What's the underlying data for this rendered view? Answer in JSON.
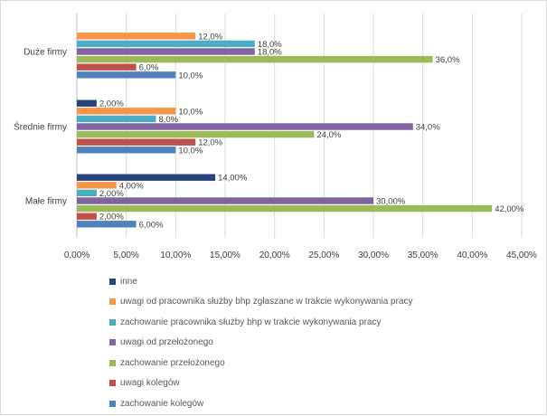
{
  "chart_data": {
    "type": "bar",
    "orientation": "horizontal",
    "categories": [
      "Duże firmy",
      "Średnie firmy",
      "Małe firmy"
    ],
    "series": [
      {
        "name": "inne",
        "color": "#264478",
        "values": [
          null,
          2.0,
          14.0
        ],
        "labels": [
          "",
          "2,00%",
          "14,00%"
        ]
      },
      {
        "name": "uwagi od pracownika służby bhp zgłaszane w trakcie wykonywania pracy",
        "color": "#f79646",
        "values": [
          12.0,
          10.0,
          4.0
        ],
        "labels": [
          "12,0%",
          "10,0%",
          "4,00%"
        ]
      },
      {
        "name": "zachowanie pracownika służby bhp w trakcie wykonywania pracy",
        "color": "#4bacc6",
        "values": [
          18.0,
          8.0,
          2.0
        ],
        "labels": [
          "18,0%",
          "8,0%",
          "2,00%"
        ]
      },
      {
        "name": "uwagi od przełożonego",
        "color": "#8064a2",
        "values": [
          18.0,
          34.0,
          30.0
        ],
        "labels": [
          "18,0%",
          "34,0%",
          "30,00%"
        ]
      },
      {
        "name": "zachowanie przełożonego",
        "color": "#9bbb59",
        "values": [
          36.0,
          24.0,
          42.0
        ],
        "labels": [
          "36,0%",
          "24,0%",
          "42,00%"
        ]
      },
      {
        "name": "uwagi kolegów",
        "color": "#c0504d",
        "values": [
          6.0,
          12.0,
          2.0
        ],
        "labels": [
          "6,0%",
          "12,0%",
          "2,00%"
        ]
      },
      {
        "name": "zachowanie kolegów",
        "color": "#4f81bd",
        "values": [
          10.0,
          10.0,
          6.0
        ],
        "labels": [
          "10,0%",
          "10,0%",
          "6,00%"
        ]
      }
    ],
    "x_ticks": [
      "0,00%",
      "5,00%",
      "10,00%",
      "15,00%",
      "20,00%",
      "25,00%",
      "30,00%",
      "35,00%",
      "40,00%",
      "45,00%"
    ],
    "xlim": [
      0,
      45
    ],
    "grid": true,
    "legend_position": "bottom"
  }
}
